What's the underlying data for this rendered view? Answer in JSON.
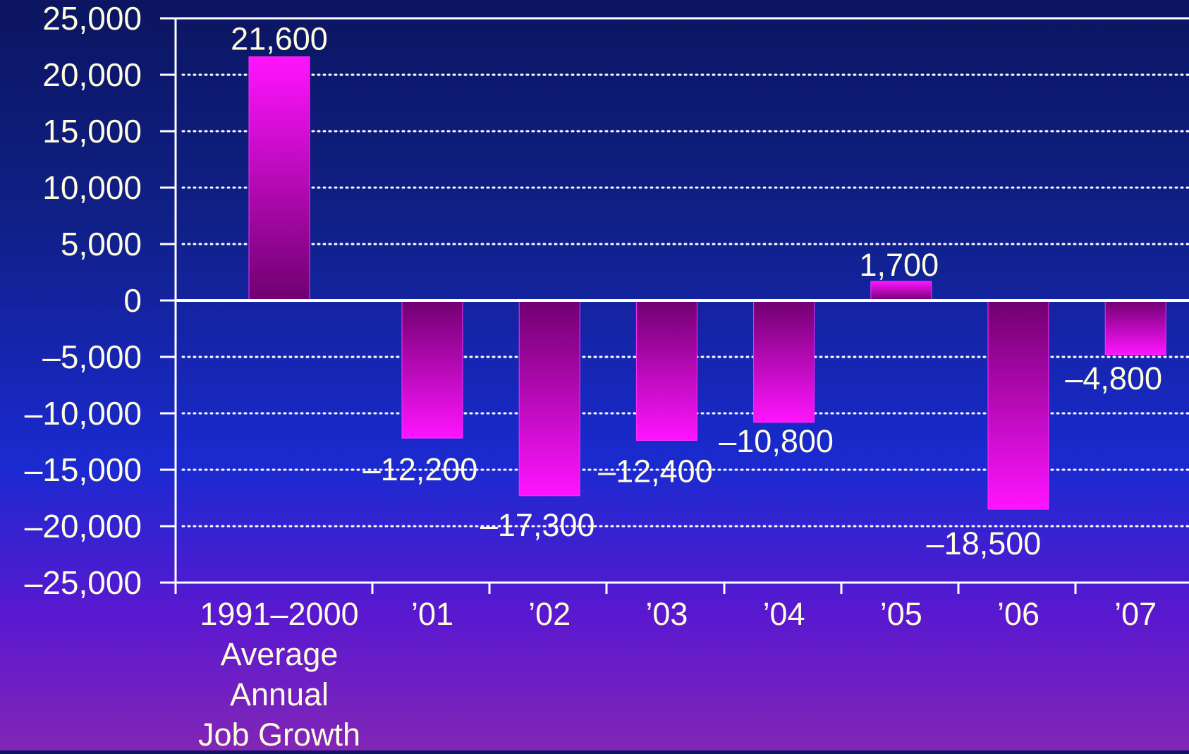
{
  "chart_data": {
    "type": "bar",
    "categories": [
      [
        "1991–2000",
        "Average",
        "Annual",
        "Job Growth"
      ],
      [
        "’01"
      ],
      [
        "’02"
      ],
      [
        "’03"
      ],
      [
        "’04"
      ],
      [
        "’05"
      ],
      [
        "’06"
      ],
      [
        "’07"
      ]
    ],
    "values": [
      21600,
      -12200,
      -17300,
      -12400,
      -10800,
      1700,
      -18500,
      -4800
    ],
    "value_labels": [
      "21,600",
      "–12,200",
      "–17,300",
      "–12,400",
      "–10,800",
      "1,700",
      "–18,500",
      "–4,800"
    ],
    "yticks": [
      25000,
      20000,
      15000,
      10000,
      5000,
      0,
      -5000,
      -10000,
      -15000,
      -20000,
      -25000
    ],
    "ytick_labels": [
      "25,000",
      "20,000",
      "15,000",
      "10,000",
      "5,000",
      "0",
      "–5,000",
      "–10,000",
      "–15,000",
      "–20,000",
      "–25,000"
    ],
    "ylim": [
      -25000,
      25000
    ],
    "grid": "dotted horizontal",
    "title": "",
    "xlabel": "",
    "ylabel": "",
    "colors": {
      "bar_bright": "#ff14ff",
      "bar_dark": "#700070",
      "axis": "#ffffff",
      "grid": "#ffffff",
      "label_text": "#fffde0"
    }
  }
}
